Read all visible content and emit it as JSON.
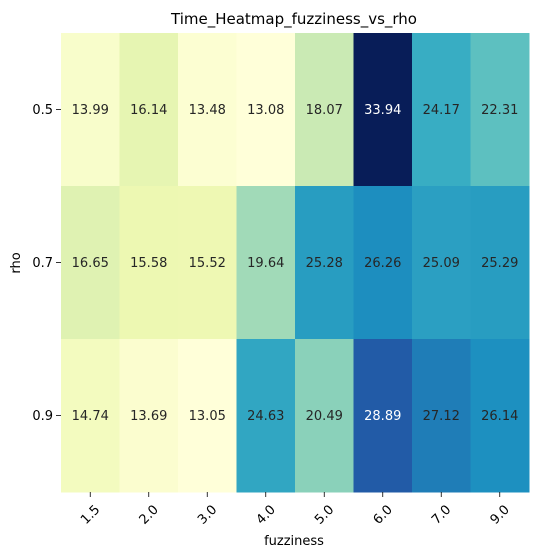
{
  "chart_data": {
    "type": "heatmap",
    "title": "Time_Heatmap_fuzziness_vs_rho",
    "xlabel": "fuzziness",
    "ylabel": "rho",
    "x_categories": [
      "1.5",
      "2.0",
      "3.0",
      "4.0",
      "5.0",
      "6.0",
      "7.0",
      "9.0"
    ],
    "y_categories": [
      "0.5",
      "0.7",
      "0.9"
    ],
    "values": [
      [
        13.99,
        16.14,
        13.48,
        13.08,
        18.07,
        33.94,
        24.17,
        22.31
      ],
      [
        16.65,
        15.58,
        15.52,
        19.64,
        25.28,
        26.26,
        25.09,
        25.29
      ],
      [
        14.74,
        13.69,
        13.05,
        24.63,
        20.49,
        28.89,
        27.12,
        26.14
      ]
    ],
    "value_labels": [
      [
        "13.99",
        "16.14",
        "13.48",
        "13.08",
        "18.07",
        "33.94",
        "24.17",
        "22.31"
      ],
      [
        "16.65",
        "15.58",
        "15.52",
        "19.64",
        "25.28",
        "26.26",
        "25.09",
        "25.29"
      ],
      [
        "14.74",
        "13.69",
        "13.05",
        "24.63",
        "20.49",
        "28.89",
        "27.12",
        "26.14"
      ]
    ],
    "colormap": "YlGnBu",
    "colorbar": false,
    "x_tick_rotation": 45
  }
}
